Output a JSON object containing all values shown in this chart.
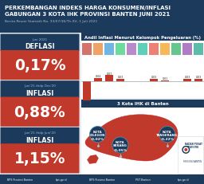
{
  "title_line1": "PERKEMBANGAN INDEKS HARGA KONSUMEN/INFLASI",
  "title_line2": "GABUNGAN 3 KOTA IHK PROVINSI BANTEN JUNI 2021",
  "subtitle": "Berita Resmi Statistik No. 33/07/36/Th.XV, 1 Juli 2021",
  "header_bg": "#1b3a5c",
  "left_panels": [
    {
      "label_top": "Juni 2021",
      "label_type": "DEFLASI",
      "value": "0,17%",
      "bg_label": "#1b3a5c",
      "bg_value": "#c0392b"
    },
    {
      "label_top": "Juni'21 thdp Des'20",
      "label_type": "INFLASI",
      "value": "0,88%",
      "bg_label": "#1b3a5c",
      "bg_value": "#c0392b"
    },
    {
      "label_top": "Juni'21 thdp Juni'20",
      "label_type": "INFLASI",
      "value": "1,15%",
      "bg_label": "#1b3a5c",
      "bg_value": "#c0392b"
    }
  ],
  "chart_title": "Andil Inflasi Menurut Kelompok Pengeluaran (%)",
  "chart_title_bg": "#1b3a5c",
  "bar_values": [
    -0.21,
    0.04,
    0.07,
    0.03,
    0.0,
    0.0,
    0.03,
    0.01,
    0.0,
    0.03,
    0.03
  ],
  "bar_color": "#c0392b",
  "map_title": "3 Kota IHK di Banten",
  "map_title_bg": "#1b3a5c",
  "cities": [
    {
      "name": "KOTA\nCILEGON",
      "value": "-0,02%"
    },
    {
      "name": "KOTA\nSERANG",
      "value": "-0,05%"
    },
    {
      "name": "KOTA\nTANGERANG",
      "value": "-0,22%"
    }
  ],
  "city_bg": "#1b3a5c",
  "bottom_bar_bg": "#1b3a5c",
  "map_color": "#c0392b",
  "bg_main": "#e8edf2"
}
